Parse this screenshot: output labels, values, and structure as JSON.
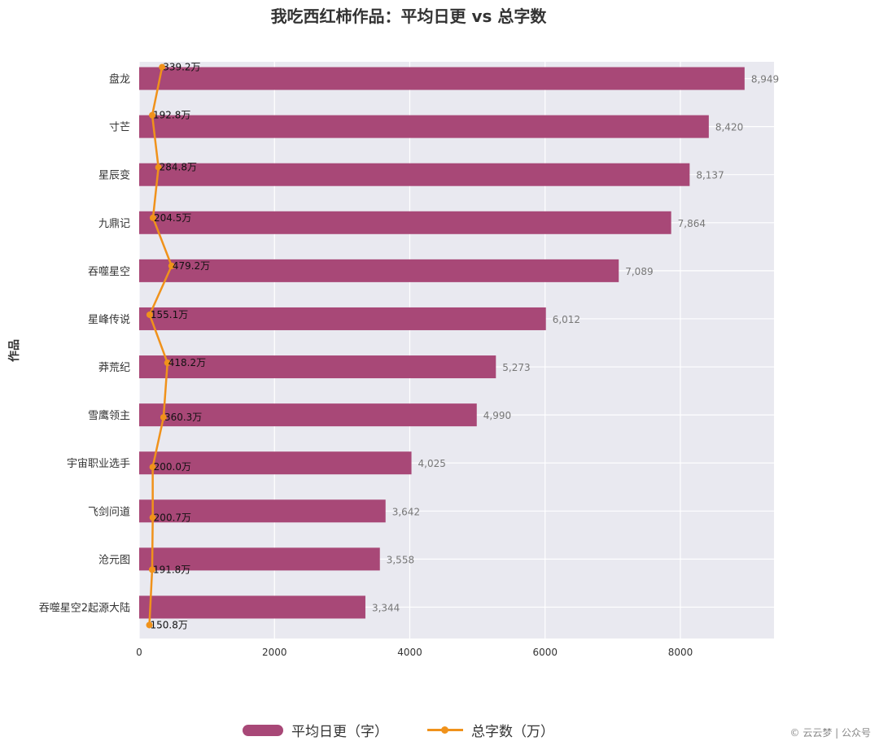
{
  "title": "我吃西红柿作品：平均日更 vs 总字数",
  "legend": {
    "bar_label": "平均日更（字）",
    "line_label": "总字数（万）"
  },
  "watermark": "© 云云梦 | 公众号",
  "colors": {
    "bar": "#a84877",
    "line": "#f0921b",
    "plot_bg": "#e9e9f0",
    "grid": "#ffffff"
  },
  "chart_data": {
    "type": "bar",
    "orientation": "horizontal",
    "title": "我吃西红柿作品：平均日更 vs 总字数",
    "xlabel": "",
    "ylabel": "作品",
    "xlim": [
      0,
      9384
    ],
    "xticks": [
      0,
      2000,
      4000,
      6000,
      8000
    ],
    "grid": true,
    "legend_position": "bottom",
    "categories": [
      "盘龙",
      "寸芒",
      "星辰变",
      "九鼎记",
      "吞噬星空",
      "星峰传说",
      "莽荒纪",
      "雪鹰领主",
      "宇宙职业选手",
      "飞剑问道",
      "沧元图",
      "吞噬星空2起源大陆"
    ],
    "series": [
      {
        "name": "平均日更（字）",
        "type": "bar",
        "values": [
          8949,
          8420,
          8137,
          7864,
          7089,
          6012,
          5273,
          4990,
          4025,
          3642,
          3558,
          3344
        ],
        "labels": [
          "8,949",
          "8,420",
          "8,137",
          "7,864",
          "7,089",
          "6,012",
          "5,273",
          "4,990",
          "4,025",
          "3,642",
          "3,558",
          "3,344"
        ]
      },
      {
        "name": "总字数（万）",
        "type": "line",
        "values": [
          339.2,
          192.8,
          284.8,
          204.5,
          479.2,
          155.1,
          418.2,
          360.3,
          200.0,
          200.7,
          191.8,
          150.8
        ],
        "labels": [
          "339.2万",
          "192.8万",
          "284.8万",
          "204.5万",
          "479.2万",
          "155.1万",
          "418.2万",
          "360.3万",
          "200.0万",
          "200.7万",
          "191.8万",
          "150.8万"
        ]
      }
    ]
  }
}
